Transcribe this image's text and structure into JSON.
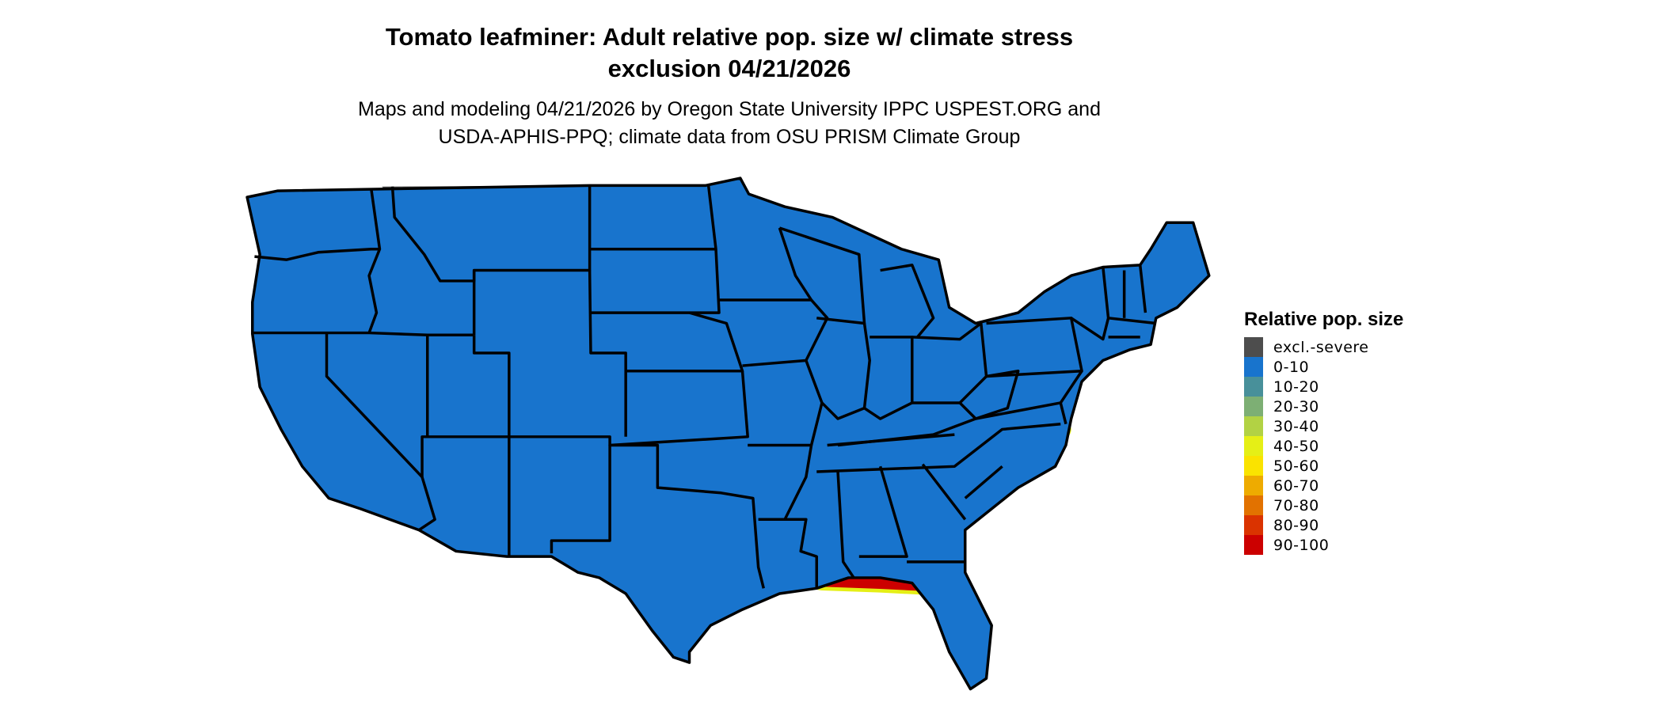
{
  "title": {
    "line1": "Tomato leafminer: Adult relative pop. size w/ climate stress",
    "line2": "exclusion 04/21/2026"
  },
  "subtitle": {
    "line1": "Maps and modeling 04/21/2026 by Oregon State University IPPC USPEST.ORG and",
    "line2": "USDA-APHIS-PPQ; climate data from OSU PRISM Climate Group"
  },
  "legend": {
    "title": "Relative pop. size",
    "items": [
      {
        "label": "excl.-severe",
        "color": "#4d4d4d"
      },
      {
        "label": "0-10",
        "color": "#1874cd"
      },
      {
        "label": "10-20",
        "color": "#48909a"
      },
      {
        "label": "20-30",
        "color": "#7daf74"
      },
      {
        "label": "30-40",
        "color": "#b2d244"
      },
      {
        "label": "40-50",
        "color": "#e5ef16"
      },
      {
        "label": "50-60",
        "color": "#fae300"
      },
      {
        "label": "60-70",
        "color": "#eeab00"
      },
      {
        "label": "70-80",
        "color": "#e27200"
      },
      {
        "label": "80-90",
        "color": "#da3300"
      },
      {
        "label": "90-100",
        "color": "#cc0000"
      }
    ]
  }
}
